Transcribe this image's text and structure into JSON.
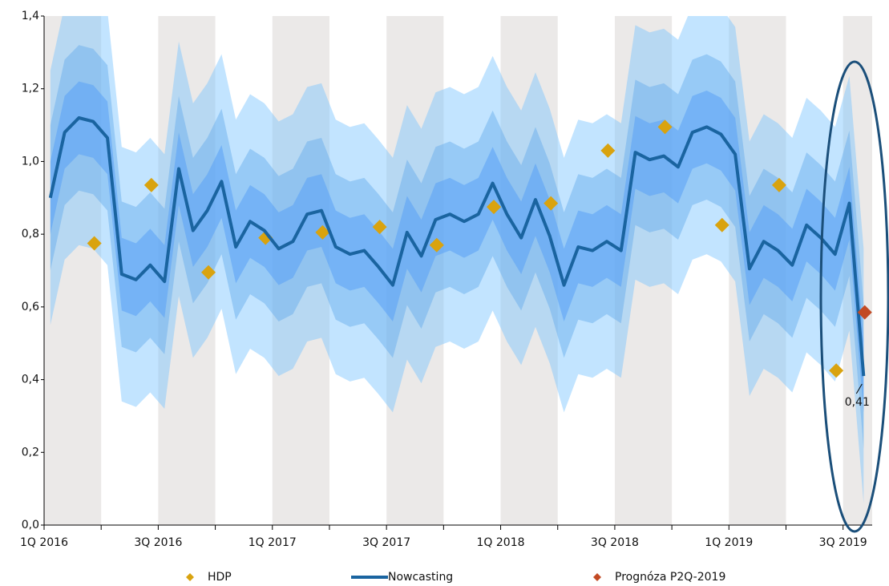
{
  "chart_data": {
    "type": "line",
    "annotation": "0,41",
    "xlim": [
      0,
      14.51
    ],
    "xticks": [
      {
        "value": 0,
        "label": "1Q 2016"
      },
      {
        "value": 2,
        "label": "3Q 2016"
      },
      {
        "value": 4,
        "label": "1Q 2017"
      },
      {
        "value": 6,
        "label": "3Q 2017"
      },
      {
        "value": 8,
        "label": "1Q 2018"
      },
      {
        "value": 10,
        "label": "3Q 2018"
      },
      {
        "value": 12,
        "label": "1Q 2019"
      },
      {
        "value": 14,
        "label": "3Q 2019"
      }
    ],
    "ylim": [
      0,
      1.4
    ],
    "yticks": [
      {
        "value": 0,
        "label": "0,0"
      },
      {
        "value": 0.2,
        "label": "0,2"
      },
      {
        "value": 0.4,
        "label": "0,4"
      },
      {
        "value": 0.6,
        "label": "0,6"
      },
      {
        "value": 0.8,
        "label": "0,8"
      },
      {
        "value": 1.0,
        "label": "1,0"
      },
      {
        "value": 1.2,
        "label": "1,2"
      },
      {
        "value": 1.4,
        "label": "1,4"
      }
    ],
    "bands": [
      {
        "spread": 0.35,
        "color": "rgba(120,195,255,0.45)"
      },
      {
        "spread": 0.2,
        "color": "rgba(100,170,235,0.45)"
      },
      {
        "spread": 0.1,
        "color": "rgba(90,160,245,0.55)"
      }
    ],
    "series": [
      {
        "name": "HDP",
        "marker": "diamond",
        "color": "#d9a30f",
        "x": [
          0.88,
          1.88,
          2.88,
          3.88,
          4.88,
          5.88,
          6.88,
          7.88,
          8.88,
          9.88,
          10.88,
          11.88,
          12.88,
          13.88
        ],
        "values": [
          0.775,
          0.935,
          0.695,
          0.79,
          0.805,
          0.82,
          0.77,
          0.875,
          0.885,
          1.03,
          1.095,
          0.825,
          0.935,
          0.425
        ]
      },
      {
        "name": "Nowcasting",
        "marker": "line",
        "color": "#1a64a0",
        "x": [
          0.11,
          0.36,
          0.61,
          0.86,
          1.11,
          1.36,
          1.61,
          1.86,
          2.11,
          2.36,
          2.61,
          2.86,
          3.11,
          3.36,
          3.61,
          3.86,
          4.11,
          4.36,
          4.61,
          4.86,
          5.11,
          5.36,
          5.61,
          5.86,
          6.11,
          6.36,
          6.61,
          6.86,
          7.11,
          7.36,
          7.61,
          7.86,
          8.11,
          8.36,
          8.61,
          8.86,
          9.11,
          9.36,
          9.61,
          9.86,
          10.11,
          10.36,
          10.61,
          10.86,
          11.11,
          11.36,
          11.61,
          11.86,
          12.11,
          12.36,
          12.61,
          12.86,
          13.11,
          13.36,
          13.61,
          13.86,
          14.11,
          14.36
        ],
        "values": [
          0.9,
          1.08,
          1.12,
          1.11,
          1.065,
          0.69,
          0.675,
          0.715,
          0.67,
          0.98,
          0.81,
          0.865,
          0.945,
          0.765,
          0.835,
          0.81,
          0.76,
          0.78,
          0.855,
          0.865,
          0.765,
          0.745,
          0.755,
          0.71,
          0.66,
          0.805,
          0.74,
          0.84,
          0.855,
          0.835,
          0.855,
          0.94,
          0.855,
          0.79,
          0.895,
          0.795,
          0.66,
          0.765,
          0.755,
          0.78,
          0.755,
          1.025,
          1.005,
          1.015,
          0.985,
          1.08,
          1.095,
          1.075,
          1.02,
          0.705,
          0.78,
          0.755,
          0.715,
          0.825,
          0.79,
          0.745,
          0.885,
          0.41
        ]
      },
      {
        "name": "Prognóza P2Q-2019",
        "marker": "diamond",
        "color": "#c24a24",
        "x": [
          14.38
        ],
        "values": [
          0.585
        ]
      }
    ]
  }
}
